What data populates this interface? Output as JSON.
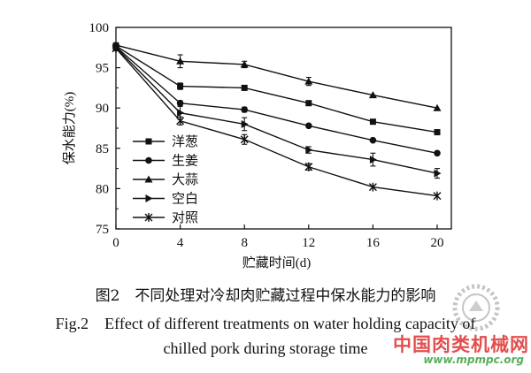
{
  "chart_data": {
    "type": "line",
    "x": [
      0,
      4,
      8,
      12,
      16,
      20
    ],
    "xlim": [
      0,
      20
    ],
    "ylim": [
      75,
      100
    ],
    "xticks": [
      0,
      4,
      8,
      12,
      16,
      20
    ],
    "yticks": [
      75,
      80,
      85,
      90,
      95,
      100
    ],
    "xlabel": "贮藏时间(d)",
    "ylabel": "保水能力(%)",
    "grid": false,
    "legend_position": "bottom-left",
    "series": [
      {
        "name": "洋葱",
        "marker": "square",
        "values": [
          97.7,
          92.7,
          92.5,
          90.6,
          88.3,
          87.0
        ],
        "errors": [
          0.3,
          0.4,
          0.3,
          0.3,
          0.2,
          0.2
        ]
      },
      {
        "name": "生姜",
        "marker": "circle",
        "values": [
          97.6,
          90.6,
          89.8,
          87.8,
          86.0,
          84.4
        ],
        "errors": [
          0.3,
          0.3,
          0.3,
          0.2,
          0.2,
          0.2
        ]
      },
      {
        "name": "大蒜",
        "marker": "triangle",
        "values": [
          97.8,
          95.8,
          95.4,
          93.3,
          91.6,
          90.0
        ],
        "errors": [
          0.3,
          0.8,
          0.4,
          0.5,
          0.2,
          0.2
        ]
      },
      {
        "name": "空白",
        "marker": "arrow",
        "values": [
          97.5,
          89.4,
          88.0,
          84.8,
          83.6,
          81.9
        ],
        "errors": [
          0.3,
          0.8,
          0.8,
          0.4,
          0.8,
          0.6
        ]
      },
      {
        "name": "对照",
        "marker": "star",
        "values": [
          97.4,
          88.4,
          86.1,
          82.7,
          80.2,
          79.1
        ],
        "errors": [
          0.3,
          0.5,
          0.6,
          0.4,
          0.2,
          0.2
        ]
      }
    ]
  },
  "caption": {
    "zh": "图2　不同处理对冷却肉贮藏过程中保水能力的影响",
    "en_line1": "Fig.2　Effect of different treatments on water holding capacity of",
    "en_line2": "chilled pork during storage time"
  },
  "watermark": {
    "text": "中国肉类机械网",
    "url": "www.mpmpc.org"
  },
  "colors": {
    "series": "#111111",
    "watermark_red": "#e02e2e",
    "watermark_green": "#3ca03c"
  }
}
